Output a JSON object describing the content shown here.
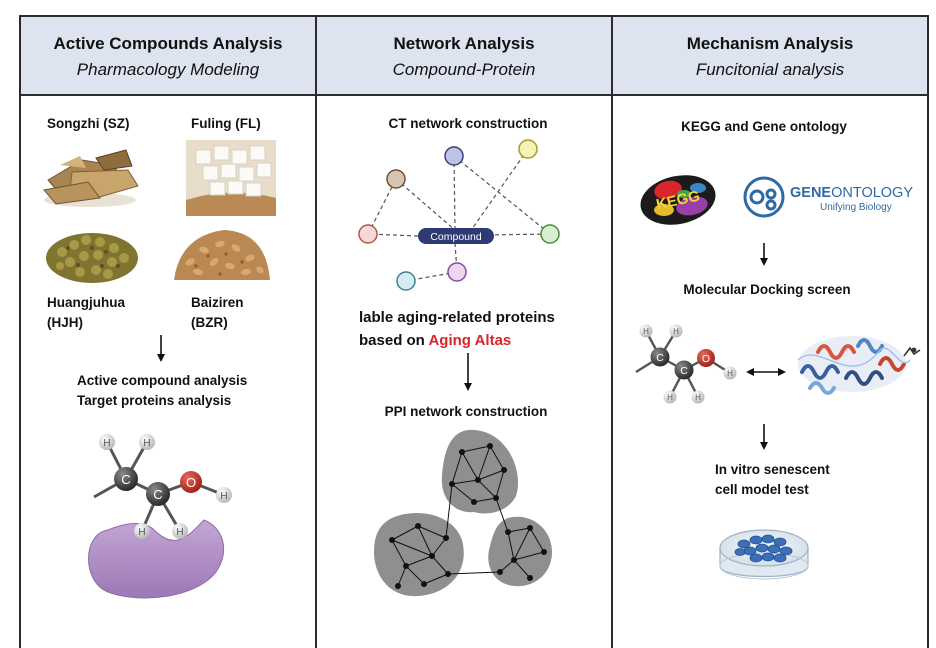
{
  "panels": [
    {
      "title": "Active Compounds Analysis",
      "subtitle": "Pharmacology Modeling"
    },
    {
      "title": "Network Analysis",
      "subtitle": "Compound-Protein"
    },
    {
      "title": "Mechanism Analysis",
      "subtitle": "Funcitonial analysis"
    }
  ],
  "herbs": {
    "sz": "Songzhi (SZ)",
    "fl": "Fuling (FL)",
    "hjh_1": "Huangjuhua",
    "hjh_2": "(HJH)",
    "bzr_1": "Baiziren",
    "bzr_2": "(BZR)"
  },
  "left_steps": {
    "line1": "Active compound  analysis",
    "line2": "Target proteins analysis"
  },
  "molecule": {
    "carbon": "C",
    "oxygen": "O",
    "hydrogen": "H"
  },
  "network": {
    "ct_title": "CT network construction",
    "compound_label": "Compound",
    "aging_line1": "lable aging-related proteins",
    "aging_line2_prefix": "based on ",
    "aging_line2_highlight": "Aging Altas",
    "ppi_title": "PPI network construction"
  },
  "mechanism": {
    "kegg_title": "KEGG and Gene ontology",
    "kegg_logo_text": "KEGG",
    "go_logo_text_bold": "GENE",
    "go_logo_text_rest": "ONTOLOGY",
    "go_tagline": "Unifying Biology",
    "docking_title": "Molecular Docking screen",
    "invitro_line1": "In vitro senescent",
    "invitro_line2": "cell model  test"
  },
  "colors": {
    "header_bg": "#dde3ef",
    "border": "#2b2b2b",
    "highlight": "#d7262b",
    "compound_pill": "#2d3a73",
    "enzyme": "#b08fc4",
    "oxygen": "#c0392b",
    "carbon": "#3a3a3a",
    "ppi_cluster": "#8f8f8f"
  }
}
